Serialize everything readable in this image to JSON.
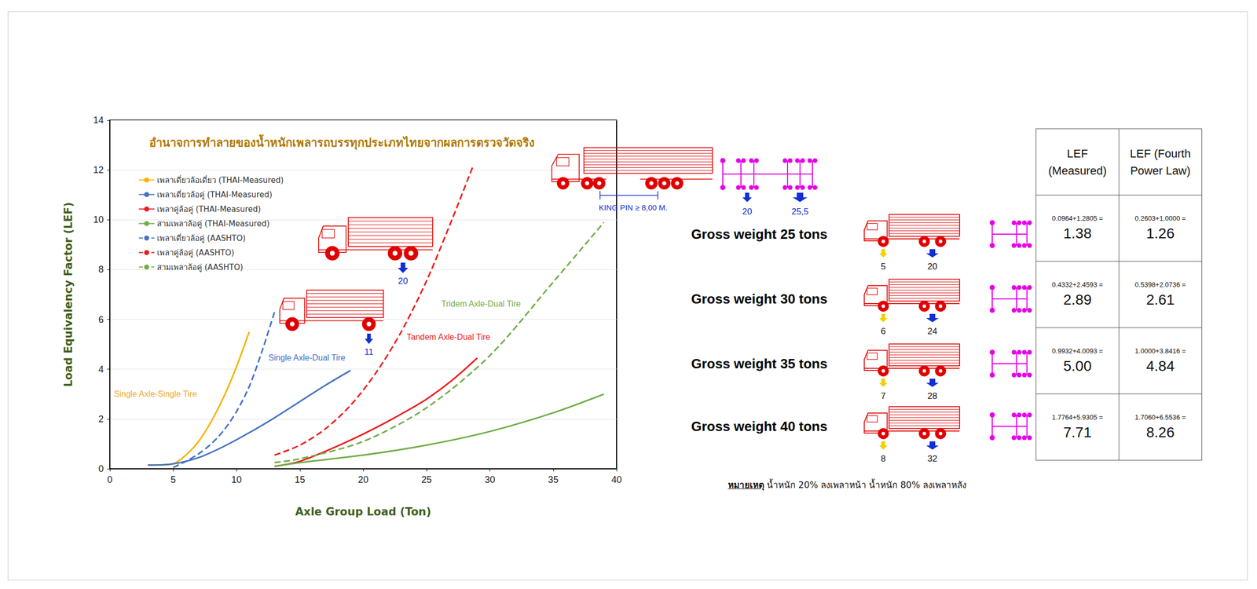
{
  "chart_data": {
    "type": "line",
    "title": "อำนาจการทำลายของน้ำหนักเพลารถบรรทุกประเภทไทยจากผลการตรวจวัดจริง",
    "x_label": "Axle Group Load (Ton)",
    "y_label": "Load Equivalency Factor (LEF)",
    "xlim": [
      0,
      40
    ],
    "xticks": [
      0,
      5,
      10,
      15,
      20,
      25,
      30,
      35,
      40
    ],
    "ylim": [
      0,
      14
    ],
    "yticks": [
      0,
      2,
      4,
      6,
      8,
      10,
      12,
      14
    ],
    "grid": true,
    "legend": "upper left",
    "series": [
      {
        "name": "เพลาเดี่ยวล้อเดี่ยว (THAI-Measured)",
        "color": "#f4b400",
        "line_style": "solid",
        "x": [
          3,
          4,
          5,
          6,
          7,
          8,
          9,
          10,
          11
        ],
        "values": [
          0.15,
          0.15,
          0.2,
          0.55,
          1.1,
          1.9,
          2.9,
          4.1,
          5.5
        ]
      },
      {
        "name": "เพลาเดี่ยวล้อคู่ (THAI-Measured)",
        "color": "#4472c4",
        "line_style": "solid",
        "x": [
          3,
          5,
          7,
          9,
          11,
          13,
          15,
          17,
          19
        ],
        "values": [
          0.15,
          0.2,
          0.45,
          0.9,
          1.45,
          2.05,
          2.7,
          3.35,
          3.95
        ]
      },
      {
        "name": "เพลาคู่ล้อคู่ (THAI-Measured)",
        "color": "#ee1c1c",
        "line_style": "solid",
        "x": [
          13,
          15,
          17,
          19,
          21,
          23,
          25,
          27,
          29
        ],
        "values": [
          0.1,
          0.3,
          0.7,
          1.15,
          1.65,
          2.2,
          2.8,
          3.55,
          4.45
        ]
      },
      {
        "name": "สามเพลาล้อคู่ (THAI-Measured)",
        "color": "#70ad47",
        "line_style": "solid",
        "x": [
          13,
          15,
          20,
          25,
          30,
          35,
          39
        ],
        "values": [
          0.1,
          0.25,
          0.55,
          0.95,
          1.5,
          2.25,
          3.0
        ]
      },
      {
        "name": "เพลาเดี่ยวล้อคู่ (AASHTO)",
        "color": "#4472c4",
        "line_style": "dashed",
        "x": [
          5,
          6,
          7,
          8,
          9,
          10,
          11,
          12,
          13
        ],
        "values": [
          0.05,
          0.3,
          0.6,
          1.0,
          1.55,
          2.3,
          3.3,
          4.7,
          6.3
        ]
      },
      {
        "name": "เพลาคู่ล้อคู่ (AASHTO)",
        "color": "#ee1c1c",
        "line_style": "dashed",
        "x": [
          13,
          15,
          17,
          19,
          21,
          23,
          25,
          27,
          28.7
        ],
        "values": [
          0.55,
          0.95,
          1.6,
          2.55,
          3.85,
          5.5,
          7.55,
          10.0,
          12.2
        ]
      },
      {
        "name": "สามเพลาล้อคู่ (AASHTO)",
        "color": "#70ad47",
        "line_style": "dashed",
        "x": [
          13,
          15,
          20,
          25,
          30,
          35,
          39
        ],
        "values": [
          0.25,
          0.4,
          1.1,
          2.45,
          4.55,
          7.5,
          9.9
        ]
      }
    ],
    "annotations": [
      {
        "text": "Single Axle-Single Tire",
        "color": "#f0a830"
      },
      {
        "text": "Single Axle-Dual Tire",
        "color": "#4472c4"
      },
      {
        "text": "Tandem Axle-Dual Tire",
        "color": "#ee1c1c"
      },
      {
        "text": "Tridem Axle-Dual Tire",
        "color": "#70ad47"
      }
    ]
  },
  "truck_labels": {
    "single_axle_truck": {
      "rear_load": "11"
    },
    "tandem_axle_truck": {
      "rear_load": "20"
    },
    "semi_trailer": {
      "king_pin": "KING PIN ≥ 8,00 M.",
      "axle_loads": [
        "20",
        "25,5"
      ]
    }
  },
  "lef_table": {
    "header": [
      "LEF (Measured)",
      "LEF (Fourth Power Law)"
    ],
    "rows": [
      {
        "label": "Gross weight 25 tons",
        "front_axle": "5",
        "rear_axle": "20",
        "cells": [
          {
            "formula": "0.0964+1.2805 =",
            "value": "1.38"
          },
          {
            "formula": "0.2603+1.0000 =",
            "value": "1.26"
          }
        ]
      },
      {
        "label": "Gross weight 30 tons",
        "front_axle": "6",
        "rear_axle": "24",
        "cells": [
          {
            "formula": "0.4332+2.4593 =",
            "value": "2.89"
          },
          {
            "formula": "0.5398+2.0736 =",
            "value": "2.61"
          }
        ]
      },
      {
        "label": "Gross weight 35 tons",
        "front_axle": "7",
        "rear_axle": "28",
        "cells": [
          {
            "formula": "0.9932+4.0093 =",
            "value": "5.00"
          },
          {
            "formula": "1.0000+3.8416 =",
            "value": "4.84"
          }
        ]
      },
      {
        "label": "Gross weight 40 tons",
        "front_axle": "8",
        "rear_axle": "32",
        "cells": [
          {
            "formula": "1.7764+5.9305 =",
            "value": "7.71"
          },
          {
            "formula": "1.7060+6.5536 =",
            "value": "8.26"
          }
        ]
      }
    ]
  },
  "note": {
    "label": "หมายเหตุ",
    "text": "น้ำหนัก 20%  ลงเพลาหน้า น้ำหนัก 80% ลงเพลาหลัง"
  }
}
